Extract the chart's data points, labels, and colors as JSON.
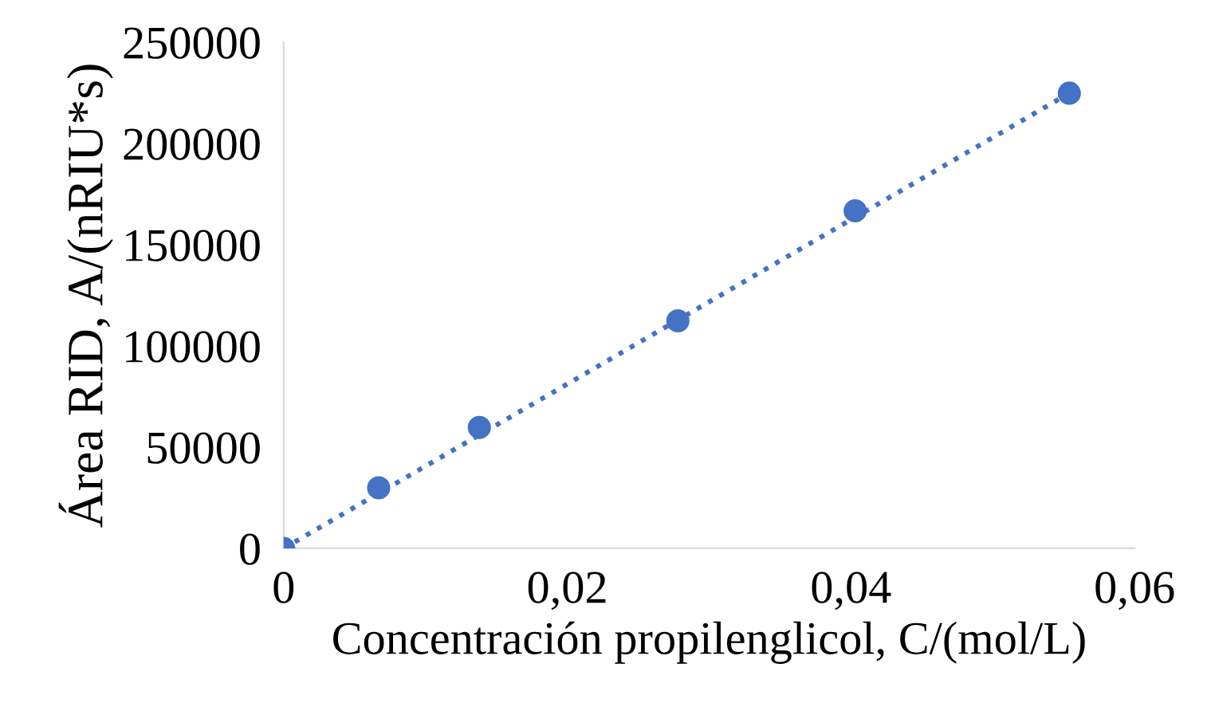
{
  "chart_data": {
    "type": "scatter",
    "xlabel": "Concentración propilenglicol, C/(mol/L)",
    "ylabel": "Área RID, A/(nRIU*s)",
    "x": [
      0,
      0.0067,
      0.0138,
      0.0278,
      0.0403,
      0.0554
    ],
    "series": [
      {
        "color": "#4472c4",
        "marker": "circle",
        "values": [
          0,
          29900,
          59700,
          112400,
          166700,
          224800
        ]
      },
      {
        "type": "line",
        "color": "#4472c4",
        "line_style": "dotted",
        "marker": "none",
        "x": [
          0,
          0.0554
        ],
        "values": [
          0,
          224800
        ]
      }
    ],
    "xlim": [
      0,
      0.06
    ],
    "xticks": [
      {
        "value": 0,
        "label": "0"
      },
      {
        "value": 0.02,
        "label": "0,02"
      },
      {
        "value": 0.04,
        "label": "0,04"
      },
      {
        "value": 0.06,
        "label": "0,06"
      }
    ],
    "ylim": [
      0,
      250000
    ],
    "yticks": [
      0,
      50000,
      100000,
      150000,
      200000,
      250000
    ],
    "grid": false,
    "legend": false
  }
}
